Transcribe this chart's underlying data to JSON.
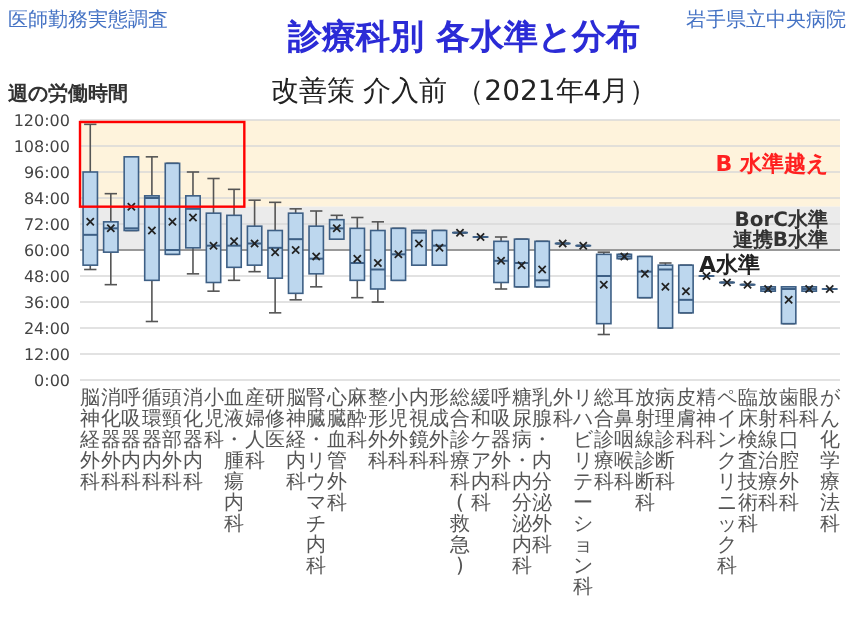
{
  "chart_data": {
    "type": "box",
    "title": "診療科別 各水準と分布",
    "subtitle": "改善策 介入前 （2021年4月）",
    "ylabel": "週の労働時間",
    "annotations": [
      "医師勤務実態調査",
      "岩手県立中央病院"
    ],
    "categories": [
      "脳神経外科",
      "消化器外科",
      "呼吸器内科",
      "循環器内科",
      "頭頸部外科",
      "消化器内科",
      "小児科",
      "血液・腫瘍内科",
      "産婦人科",
      "研修医",
      "脳神経内科",
      "腎臓・リウマチ内科",
      "心臓血管外科",
      "麻酔科",
      "整形外科",
      "小児外科",
      "内視鏡科",
      "形成外科",
      "総合診療科(救急)",
      "緩和ケア内科",
      "呼吸器外科",
      "糖尿病・内分泌内科",
      "乳腺・内分泌外科",
      "外科",
      "リハビリテーション科",
      "総合診療科",
      "耳鼻咽喉科",
      "放射線診断科",
      "病理診断科",
      "皮膚科",
      "精神科",
      "ペインクリニック科",
      "臨床検査技術科",
      "放射線治療科",
      "歯科口腔外科",
      "眼科",
      "がん化学療法科"
    ],
    "color": "#bdd7ee",
    "boxes": [
      {
        "low": 51,
        "q1": 53,
        "median": 67,
        "q3": 96,
        "high": 118,
        "mean": 73
      },
      {
        "low": 44,
        "q1": 59,
        "median": 70,
        "q3": 73,
        "high": 86,
        "mean": 70
      },
      {
        "low": 69,
        "q1": 69,
        "median": 70,
        "q3": 103,
        "high": 103,
        "mean": 80
      },
      {
        "low": 27,
        "q1": 46,
        "median": 84,
        "q3": 85,
        "high": 103,
        "mean": 69
      },
      {
        "low": 58,
        "q1": 58,
        "median": 60,
        "q3": 100,
        "high": 100,
        "mean": 73
      },
      {
        "low": 49,
        "q1": 61,
        "median": 79,
        "q3": 85,
        "high": 96,
        "mean": 75
      },
      {
        "low": 41,
        "q1": 45,
        "median": 62,
        "q3": 77,
        "high": 93,
        "mean": 62
      },
      {
        "low": 46,
        "q1": 52,
        "median": 62,
        "q3": 76,
        "high": 88,
        "mean": 64
      },
      {
        "low": 50,
        "q1": 53,
        "median": 63,
        "q3": 71,
        "high": 83,
        "mean": 63
      },
      {
        "low": 31,
        "q1": 47,
        "median": 61,
        "q3": 69,
        "high": 82,
        "mean": 59
      },
      {
        "low": 37,
        "q1": 40,
        "median": 65,
        "q3": 77,
        "high": 79,
        "mean": 60
      },
      {
        "low": 43,
        "q1": 49,
        "median": 56,
        "q3": 71,
        "high": 78,
        "mean": 57
      },
      {
        "low": 65,
        "q1": 65,
        "median": 70,
        "q3": 74,
        "high": 76,
        "mean": 70
      },
      {
        "low": 38,
        "q1": 46,
        "median": 54,
        "q3": 70,
        "high": 75,
        "mean": 56
      },
      {
        "low": 36,
        "q1": 42,
        "median": 51,
        "q3": 69,
        "high": 73,
        "mean": 54
      },
      {
        "low": 46,
        "q1": 46,
        "median": 58,
        "q3": 70,
        "high": 70,
        "mean": 58
      },
      {
        "low": 53,
        "q1": 53,
        "median": 68,
        "q3": 69,
        "high": 69,
        "mean": 63
      },
      {
        "low": 53,
        "q1": 53,
        "median": 62,
        "q3": 69,
        "high": 69,
        "mean": 61
      },
      {
        "low": 68,
        "q1": 68,
        "median": 68,
        "q3": 68,
        "high": 68,
        "mean": 68
      },
      {
        "low": 66,
        "q1": 66,
        "median": 66,
        "q3": 66,
        "high": 66,
        "mean": 66
      },
      {
        "low": 42,
        "q1": 45,
        "median": 55,
        "q3": 64,
        "high": 66,
        "mean": 55
      },
      {
        "low": 43,
        "q1": 43,
        "median": 54,
        "q3": 65,
        "high": 65,
        "mean": 53
      },
      {
        "low": 43,
        "q1": 43,
        "median": 46,
        "q3": 64,
        "high": 64,
        "mean": 51
      },
      {
        "low": 63,
        "q1": 63,
        "median": 63,
        "q3": 63,
        "high": 63,
        "mean": 63
      },
      {
        "low": 62,
        "q1": 62,
        "median": 62,
        "q3": 62,
        "high": 62,
        "mean": 62
      },
      {
        "low": 21,
        "q1": 26,
        "median": 48,
        "q3": 58,
        "high": 59,
        "mean": 44
      },
      {
        "low": 56,
        "q1": 56,
        "median": 57,
        "q3": 58,
        "high": 58,
        "mean": 57
      },
      {
        "low": 38,
        "q1": 38,
        "median": 50,
        "q3": 57,
        "high": 57,
        "mean": 49
      },
      {
        "low": 24,
        "q1": 24,
        "median": 51,
        "q3": 53,
        "high": 54,
        "mean": 43
      },
      {
        "low": 31,
        "q1": 31,
        "median": 37,
        "q3": 53,
        "high": 53,
        "mean": 41
      },
      {
        "low": 48,
        "q1": 48,
        "median": 48,
        "q3": 48,
        "high": 48,
        "mean": 48
      },
      {
        "low": 45,
        "q1": 45,
        "median": 45,
        "q3": 45,
        "high": 45,
        "mean": 45
      },
      {
        "low": 44,
        "q1": 44,
        "median": 44,
        "q3": 44,
        "high": 44,
        "mean": 44
      },
      {
        "low": 41,
        "q1": 41,
        "median": 42,
        "q3": 43,
        "high": 43,
        "mean": 42
      },
      {
        "low": 26,
        "q1": 26,
        "median": 42,
        "q3": 43,
        "high": 43,
        "mean": 37
      },
      {
        "low": 41,
        "q1": 41,
        "median": 42,
        "q3": 43,
        "high": 43,
        "mean": 42
      },
      {
        "low": 42,
        "q1": 42,
        "median": 42,
        "q3": 42,
        "high": 42,
        "mean": 42
      }
    ],
    "ylim": [
      0,
      120
    ],
    "yticks": [
      {
        "value": 0,
        "label": "0:00"
      },
      {
        "value": 12,
        "label": "12:00"
      },
      {
        "value": 24,
        "label": "24:00"
      },
      {
        "value": 36,
        "label": "36:00"
      },
      {
        "value": 48,
        "label": "48:00"
      },
      {
        "value": 60,
        "label": "60:00"
      },
      {
        "value": 72,
        "label": "72:00"
      },
      {
        "value": 84,
        "label": "84:00"
      },
      {
        "value": 96,
        "label": "96:00"
      },
      {
        "value": 108,
        "label": "108:00"
      },
      {
        "value": 120,
        "label": "120:00"
      }
    ],
    "grid": "y",
    "bands": [
      {
        "axis": "y",
        "from": 80,
        "to": 120,
        "label": "B 水準越え",
        "color": "#fef3dc"
      },
      {
        "axis": "y",
        "from": 60,
        "to": 80,
        "label": "BorC水準連携B水準",
        "color": "#ebebeb"
      }
    ],
    "ref_lines": [
      {
        "axis": "y",
        "value": 60,
        "label": "A水準",
        "color": "#999999"
      }
    ]
  }
}
